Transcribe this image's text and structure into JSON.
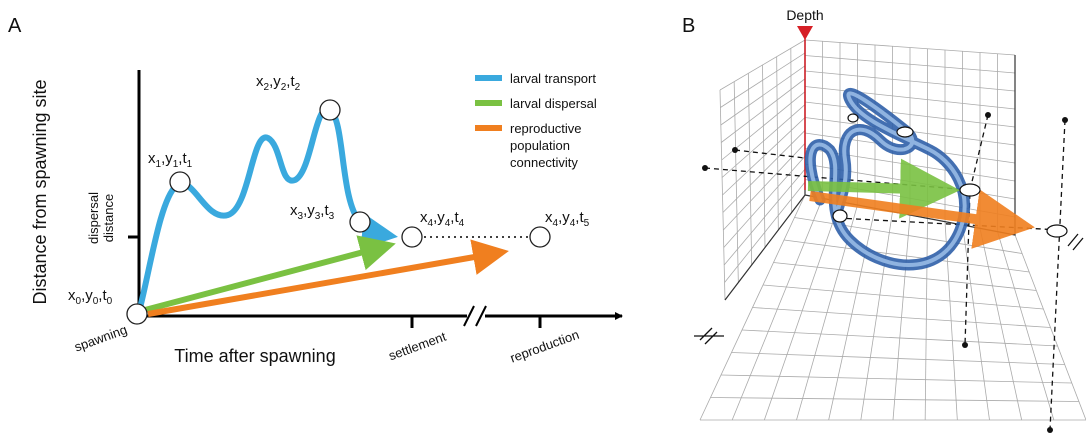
{
  "panel_a": {
    "letter": "A",
    "y_axis_label": "Distance from spawning site",
    "x_axis_label": "Time after spawning",
    "y_tick_label": [
      "dispersal",
      "distance"
    ],
    "x_tick_labels": [
      "spawning",
      "settlement",
      "reproduction"
    ],
    "legend": [
      {
        "lines": [
          "larval transport"
        ],
        "color": "#3aa9de"
      },
      {
        "lines": [
          "larval dispersal"
        ],
        "color": "#7ac142"
      },
      {
        "lines": [
          "reproductive",
          "population",
          "connectivity"
        ],
        "color": "#f07f1f"
      }
    ],
    "points": [
      [
        "x",
        "0",
        ",y",
        "0",
        ",t",
        "0"
      ],
      [
        "x",
        "1",
        ",y",
        "1",
        ",t",
        "1"
      ],
      [
        "x",
        "2",
        ",y",
        "2",
        ",t",
        "2"
      ],
      [
        "x",
        "3",
        ",y",
        "3",
        ",t",
        "3"
      ],
      [
        "x",
        "4",
        ",y",
        "4",
        ",t",
        "4"
      ],
      [
        "x",
        "4",
        ",y",
        "4",
        ",t",
        "5"
      ]
    ]
  },
  "panel_b": {
    "letter": "B",
    "depth_label": "Depth"
  }
}
